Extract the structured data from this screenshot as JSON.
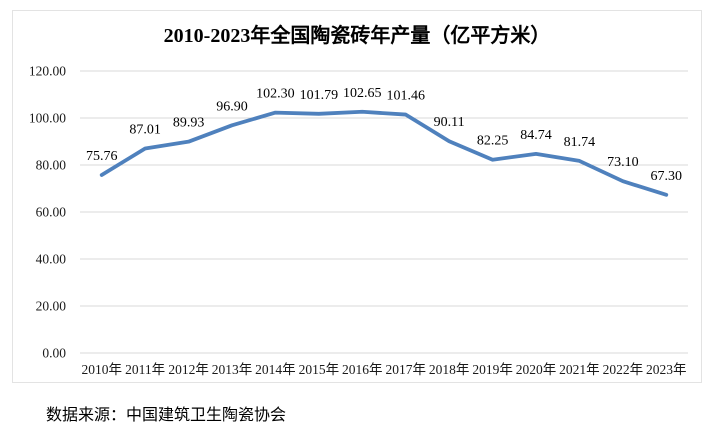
{
  "chart_data": {
    "type": "line",
    "title": "2010-2023年全国陶瓷砖年产量（亿平方米）",
    "categories": [
      "2010年",
      "2011年",
      "2012年",
      "2013年",
      "2014年",
      "2015年",
      "2016年",
      "2017年",
      "2018年",
      "2019年",
      "2020年",
      "2021年",
      "2022年",
      "2023年"
    ],
    "values": [
      75.76,
      87.01,
      89.93,
      96.9,
      102.3,
      101.79,
      102.65,
      101.46,
      90.11,
      82.25,
      84.74,
      81.74,
      73.1,
      67.3
    ],
    "data_labels": [
      "75.76",
      "87.01",
      "89.93",
      "96.90",
      "102.30",
      "101.79",
      "102.65",
      "101.46",
      "90.11",
      "82.25",
      "84.74",
      "81.74",
      "73.10",
      "67.30"
    ],
    "xlabel": "",
    "ylabel": "",
    "ylim": [
      0,
      120
    ],
    "ytick_step": 20,
    "ytick_labels": [
      "0.00",
      "20.00",
      "40.00",
      "60.00",
      "80.00",
      "100.00",
      "120.00"
    ],
    "grid": true,
    "legend_position": "none",
    "line_color": "#4F81BD",
    "gridline_color": "#D9D9D9",
    "frame_color": "#E3E3E3",
    "text_color": "#000000"
  },
  "source": {
    "text": "数据来源：中国建筑卫生陶瓷协会"
  }
}
